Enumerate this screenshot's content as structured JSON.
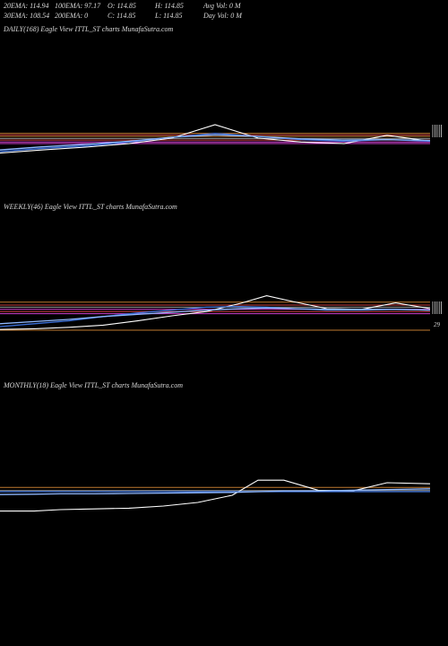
{
  "header": {
    "stats": [
      {
        "label": "20EMA: 114.94"
      },
      {
        "label": "100EMA: 97.17"
      },
      {
        "label": "O: 114.85"
      },
      {
        "label": "H: 114.85"
      },
      {
        "label": "Avg Vol: 0  M"
      },
      {
        "label": "30EMA: 108.54"
      },
      {
        "label": "200EMA: 0"
      },
      {
        "label": "C: 114.85"
      },
      {
        "label": "L: 114.85"
      },
      {
        "label": "Day Vol: 0  M"
      }
    ]
  },
  "panels": [
    {
      "title": "DAILY(168) Eagle   View  ITTL_ST charts MunafaSutra.com",
      "side_labels": []
    },
    {
      "title": "WEEKLY(46) Eagle   View  ITTL_ST charts MunafaSutra.com",
      "side_labels": [
        "29"
      ]
    },
    {
      "title": "MONTHLY(18) Eagle   View  ITTL_ST charts MunafaSutra.com",
      "side_labels": []
    }
  ],
  "colors": {
    "background": "#000000",
    "price": "#ffffff",
    "ema_blue": "#3a6fd8",
    "ema_light_blue": "#8fb8ff",
    "level_magenta": "#d040d0",
    "level_orange": "#c07a30",
    "level_red": "#c84040",
    "level_gray": "#9a9a9a"
  },
  "chart_data": [
    {
      "type": "line",
      "title": "DAILY(168) Eagle   View  ITTL_ST charts MunafaSutra.com",
      "ylim": [
        0,
        100
      ],
      "series": [
        {
          "color": "#ffffff",
          "x": [
            0,
            10,
            20,
            30,
            40,
            50,
            60,
            70,
            80,
            90,
            100
          ],
          "values": [
            10,
            18,
            25,
            34,
            48,
            82,
            48,
            38,
            34,
            55,
            40
          ]
        },
        {
          "color": "#3a6fd8",
          "x": [
            0,
            10,
            20,
            30,
            40,
            50,
            60,
            70,
            80,
            90,
            100
          ],
          "values": [
            14,
            22,
            28,
            38,
            50,
            60,
            52,
            44,
            40,
            44,
            40
          ]
        },
        {
          "color": "#8fb8ff",
          "x": [
            0,
            10,
            20,
            30,
            40,
            50,
            60,
            70,
            80,
            90,
            100
          ],
          "values": [
            18,
            26,
            32,
            40,
            50,
            56,
            52,
            46,
            43,
            44,
            42
          ]
        }
      ],
      "levels": [
        {
          "y": 60,
          "color": "#c07a30"
        },
        {
          "y": 56,
          "color": "#c84040"
        },
        {
          "y": 52,
          "color": "#c07a30"
        },
        {
          "y": 47,
          "color": "#9a9a9a"
        },
        {
          "y": 43,
          "color": "#c84040"
        },
        {
          "y": 38,
          "color": "#d040d0"
        },
        {
          "y": 34,
          "color": "#d040d0"
        }
      ]
    },
    {
      "type": "line",
      "title": "WEEKLY(46) Eagle   View  ITTL_ST charts MunafaSutra.com",
      "ylim": [
        0,
        100
      ],
      "series": [
        {
          "color": "#ffffff",
          "x": [
            0,
            8,
            16,
            24,
            32,
            40,
            48,
            56,
            62,
            68,
            76,
            84,
            92,
            100
          ],
          "values": [
            2,
            4,
            8,
            14,
            26,
            40,
            52,
            75,
            96,
            80,
            60,
            58,
            76,
            60
          ]
        },
        {
          "color": "#3a6fd8",
          "x": [
            0,
            8,
            16,
            24,
            32,
            40,
            48,
            56,
            62,
            68,
            76,
            84,
            92,
            100
          ],
          "values": [
            10,
            18,
            26,
            38,
            48,
            56,
            64,
            66,
            64,
            60,
            56,
            56,
            58,
            56
          ]
        },
        {
          "color": "#8fb8ff",
          "x": [
            0,
            8,
            16,
            24,
            32,
            40,
            48,
            56,
            62,
            68,
            76,
            84,
            92,
            100
          ],
          "values": [
            18,
            24,
            30,
            38,
            44,
            50,
            56,
            60,
            62,
            60,
            58,
            58,
            58,
            56
          ]
        }
      ],
      "levels": [
        {
          "y": 78,
          "color": "#c07a30"
        },
        {
          "y": 70,
          "color": "#c84040"
        },
        {
          "y": 64,
          "color": "#9a9a9a"
        },
        {
          "y": 58,
          "color": "#d040d0"
        },
        {
          "y": 52,
          "color": "#c84040"
        },
        {
          "y": 46,
          "color": "#d040d0"
        },
        {
          "y": 0,
          "color": "#c07a30"
        }
      ]
    },
    {
      "type": "line",
      "title": "MONTHLY(18) Eagle   View  ITTL_ST charts MunafaSutra.com",
      "ylim": [
        0,
        100
      ],
      "series": [
        {
          "color": "#ffffff",
          "x": [
            0,
            8,
            14,
            22,
            30,
            38,
            46,
            54,
            60,
            66,
            74,
            82,
            90,
            100
          ],
          "values": [
            6,
            6,
            10,
            12,
            14,
            20,
            30,
            50,
            92,
            92,
            64,
            62,
            85,
            82
          ]
        },
        {
          "color": "#3a6fd8",
          "x": [
            0,
            8,
            14,
            22,
            30,
            38,
            46,
            54,
            60,
            66,
            74,
            82,
            90,
            100
          ],
          "values": [
            60,
            60,
            60,
            60,
            60,
            60,
            60,
            60,
            60,
            60,
            60,
            60,
            60,
            60
          ]
        },
        {
          "color": "#8fb8ff",
          "x": [
            0,
            8,
            14,
            22,
            30,
            38,
            46,
            54,
            60,
            66,
            74,
            82,
            90,
            100
          ],
          "values": [
            52,
            53,
            54,
            54,
            55,
            56,
            57,
            58,
            60,
            62,
            62,
            64,
            66,
            68
          ]
        }
      ],
      "levels": [
        {
          "y": 72,
          "color": "#c07a30"
        },
        {
          "y": 63,
          "color": "#9a9a9a"
        }
      ]
    }
  ]
}
